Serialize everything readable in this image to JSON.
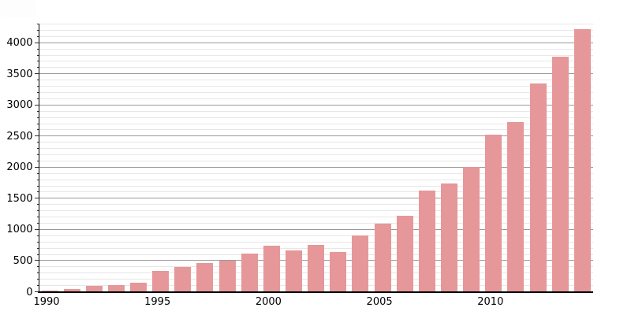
{
  "chart_data": {
    "type": "bar",
    "title": "",
    "xlabel": "",
    "ylabel": "",
    "categories": [
      1990,
      1991,
      1992,
      1993,
      1994,
      1995,
      1996,
      1997,
      1998,
      1999,
      2000,
      2001,
      2002,
      2003,
      2004,
      2005,
      2006,
      2007,
      2008,
      2009,
      2010,
      2011,
      2012,
      2013,
      2014
    ],
    "values": [
      20,
      45,
      90,
      110,
      140,
      340,
      395,
      465,
      500,
      610,
      735,
      670,
      750,
      645,
      905,
      1090,
      1220,
      1620,
      1740,
      2000,
      2520,
      2730,
      3340,
      3780,
      4220
    ],
    "ylim": [
      0,
      4300
    ],
    "y_major_step": 500,
    "y_minor_step": 100,
    "grid": "on",
    "legend_position": "none",
    "y_tick_values": [
      0,
      500,
      1000,
      1500,
      2000,
      2500,
      3000,
      3500,
      4000
    ],
    "y_axis_tick_labels": [
      "0",
      "500",
      "1000",
      "1500",
      "2000",
      "2500",
      "3000",
      "3500",
      "4000"
    ],
    "x_tick_years": [
      1990,
      1995,
      2000,
      2005,
      2010
    ],
    "x_axis_tick_labels": [
      "1990",
      "1995",
      "2000",
      "2005",
      "2010"
    ],
    "colors": {
      "bar_fill": "#e69799",
      "major_grid": "#9a9a9a",
      "minor_grid": "#e7e7e7",
      "axis": "#000000",
      "label_text": "#000000",
      "background": "#ffffff"
    }
  }
}
